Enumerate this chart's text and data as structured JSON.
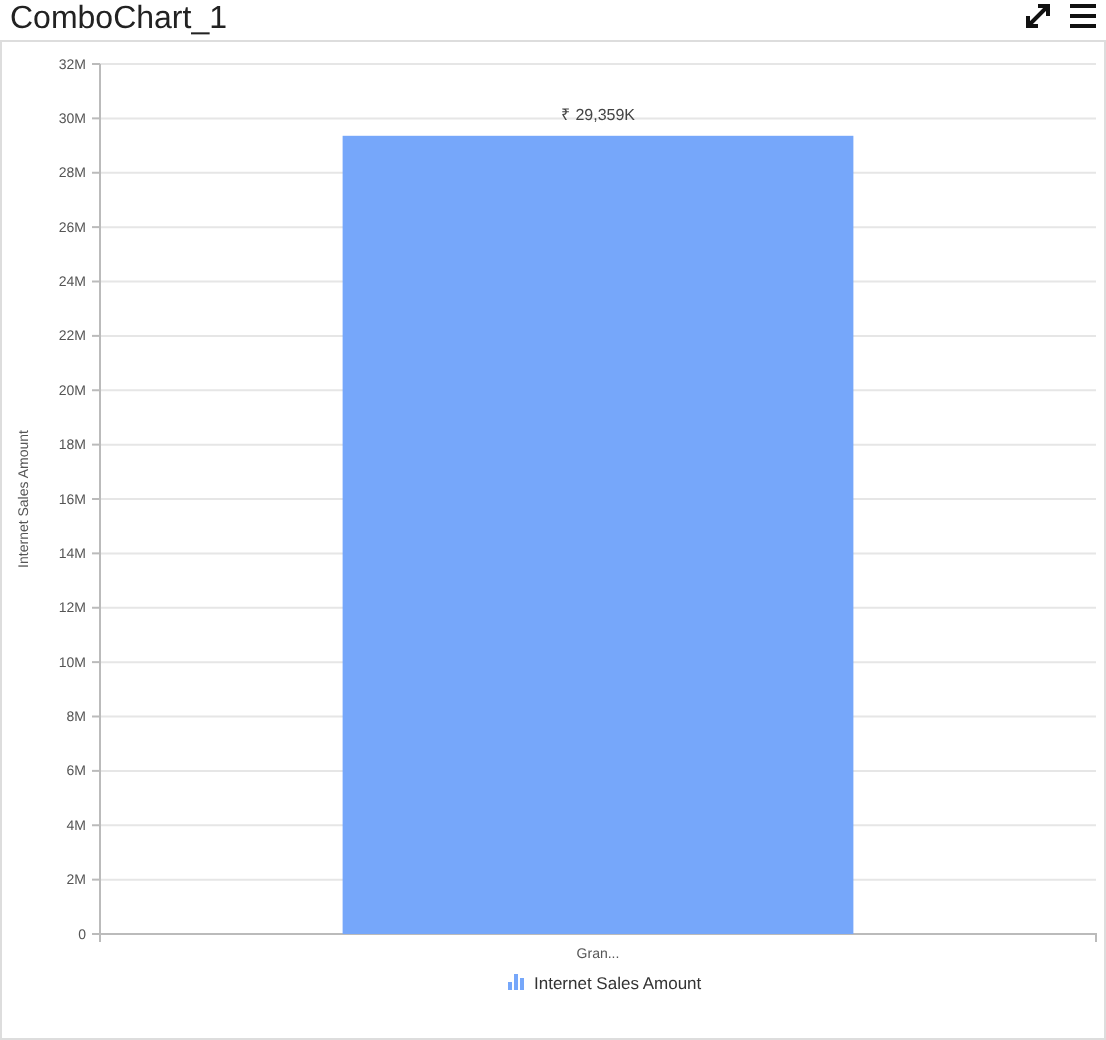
{
  "chart_data": {
    "type": "bar",
    "title": "ComboChart_1",
    "ylabel": "Internet Sales Amount",
    "categories": [
      "Gran..."
    ],
    "series": [
      {
        "name": "Internet Sales Amount",
        "color": "#76a7fa",
        "values": [
          29359000
        ],
        "value_labels": [
          "₹ 29,359K"
        ]
      }
    ],
    "ylim": [
      0,
      32000000
    ],
    "yticks": [
      {
        "value": 0,
        "label": "0"
      },
      {
        "value": 2000000,
        "label": "2M"
      },
      {
        "value": 4000000,
        "label": "4M"
      },
      {
        "value": 6000000,
        "label": "6M"
      },
      {
        "value": 8000000,
        "label": "8M"
      },
      {
        "value": 10000000,
        "label": "10M"
      },
      {
        "value": 12000000,
        "label": "12M"
      },
      {
        "value": 14000000,
        "label": "14M"
      },
      {
        "value": 16000000,
        "label": "16M"
      },
      {
        "value": 18000000,
        "label": "18M"
      },
      {
        "value": 20000000,
        "label": "20M"
      },
      {
        "value": 22000000,
        "label": "22M"
      },
      {
        "value": 24000000,
        "label": "24M"
      },
      {
        "value": 26000000,
        "label": "26M"
      },
      {
        "value": 28000000,
        "label": "28M"
      },
      {
        "value": 30000000,
        "label": "30M"
      },
      {
        "value": 32000000,
        "label": "32M"
      }
    ],
    "grid": "y",
    "legend": "bottom"
  }
}
